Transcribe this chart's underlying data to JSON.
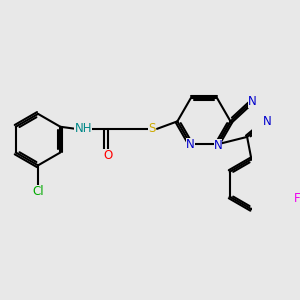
{
  "bg_color": "#e8e8e8",
  "bond_color": "#000000",
  "bond_width": 1.5,
  "atom_colors": {
    "N": "#0000cc",
    "O": "#ff0000",
    "S": "#ccaa00",
    "Cl": "#00aa00",
    "F": "#ee00ee",
    "H": "#008888",
    "C": "#000000"
  },
  "font_size": 8.5,
  "fig_size": [
    3.0,
    3.0
  ],
  "dpi": 100
}
